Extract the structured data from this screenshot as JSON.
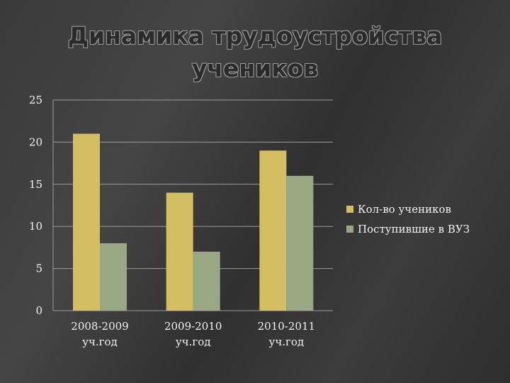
{
  "slide": {
    "title_line1": "Динамика трудоустройства",
    "title_line2": "учеников"
  },
  "chart_data": {
    "type": "bar",
    "title": "",
    "xlabel": "",
    "ylabel": "",
    "categories": [
      [
        "2008-2009",
        "уч.год"
      ],
      [
        "2009-2010",
        "уч.год"
      ],
      [
        "2010-2011",
        "уч.год"
      ]
    ],
    "series": [
      {
        "name": "Кол-во учеников",
        "values": [
          21,
          14,
          19
        ],
        "color": "#d4be62"
      },
      {
        "name": "Поступившие в ВУЗ",
        "values": [
          8,
          7,
          16
        ],
        "color": "#98a882"
      }
    ],
    "ylim": [
      0,
      25
    ],
    "yticks": [
      0,
      5,
      10,
      15,
      20,
      25
    ],
    "grid": true,
    "legend": "right"
  },
  "colors": {
    "background": "#3a3a3a",
    "grid": "#9b9b9b",
    "text": "#f2f2f2"
  }
}
